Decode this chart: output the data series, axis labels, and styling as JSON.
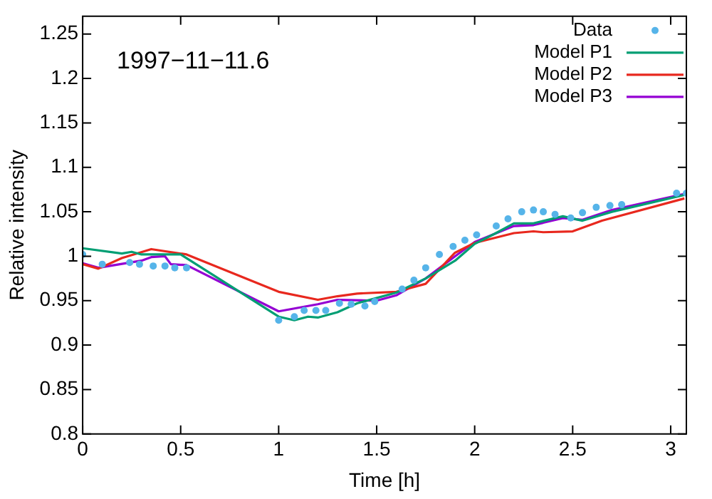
{
  "chart_data": {
    "type": "line",
    "xlabel": "Time [h]",
    "ylabel": "Relative intensity",
    "annotations": [
      "1997−11−11.6"
    ],
    "xlim": [
      0,
      3.08
    ],
    "xticks": [
      0,
      0.5,
      1,
      1.5,
      2,
      2.5,
      3
    ],
    "ylim": [
      0.8,
      1.27
    ],
    "yticks": [
      0.8,
      0.85,
      0.9,
      0.95,
      1,
      1.05,
      1.1,
      1.15,
      1.2,
      1.25
    ],
    "legend": "top right",
    "marker": "none",
    "line_style": "solid",
    "series": [
      {
        "name": "Data",
        "type": "scatter",
        "marker": "circle",
        "color": "#56b4e9",
        "x": [
          0,
          0.1,
          0.24,
          0.29,
          0.36,
          0.42,
          0.47,
          0.53,
          1.0,
          1.08,
          1.13,
          1.19,
          1.24,
          1.31,
          1.37,
          1.44,
          1.49,
          1.63,
          1.69,
          1.75,
          1.82,
          1.89,
          1.95,
          2.01,
          2.11,
          2.17,
          2.24,
          2.3,
          2.35,
          2.41,
          2.49,
          2.55,
          2.62,
          2.69,
          2.75,
          3.03,
          3.08
        ],
        "values": [
          1.002,
          0.991,
          0.993,
          0.991,
          0.989,
          0.989,
          0.987,
          0.987,
          0.928,
          0.932,
          0.939,
          0.939,
          0.939,
          0.947,
          0.946,
          0.944,
          0.949,
          0.963,
          0.973,
          0.987,
          1.002,
          1.011,
          1.018,
          1.024,
          1.034,
          1.042,
          1.05,
          1.052,
          1.05,
          1.047,
          1.043,
          1.049,
          1.055,
          1.057,
          1.058,
          1.071,
          1.071
        ]
      },
      {
        "name": "Model P1",
        "color": "#009e73",
        "x": [
          0,
          0.2,
          0.25,
          0.3,
          0.5,
          1.0,
          1.08,
          1.15,
          1.2,
          1.3,
          1.4,
          1.6,
          1.75,
          1.9,
          2.0,
          2.1,
          2.2,
          2.3,
          2.45,
          2.55,
          2.7,
          3.07
        ],
        "values": [
          1.009,
          1.003,
          1.005,
          1.002,
          1.002,
          0.932,
          0.928,
          0.932,
          0.931,
          0.937,
          0.947,
          0.959,
          0.975,
          0.995,
          1.014,
          1.025,
          1.037,
          1.037,
          1.045,
          1.04,
          1.05,
          1.069
        ]
      },
      {
        "name": "Model P2",
        "color": "#e8281e",
        "x": [
          0,
          0.08,
          0.2,
          0.35,
          0.53,
          1.0,
          1.2,
          1.3,
          1.4,
          1.6,
          1.75,
          1.9,
          2.0,
          2.2,
          2.3,
          2.35,
          2.5,
          2.65,
          3.07
        ],
        "values": [
          0.991,
          0.986,
          0.998,
          1.008,
          1.002,
          0.96,
          0.951,
          0.955,
          0.958,
          0.96,
          0.969,
          1.004,
          1.015,
          1.026,
          1.028,
          1.027,
          1.028,
          1.04,
          1.065
        ]
      },
      {
        "name": "Model P3",
        "color": "#9400d3",
        "x": [
          0,
          0.08,
          0.3,
          0.35,
          0.42,
          0.45,
          0.53,
          1.0,
          1.2,
          1.3,
          1.5,
          1.6,
          1.75,
          1.9,
          2.0,
          2.2,
          2.3,
          2.45,
          2.55,
          2.7,
          3.07
        ],
        "values": [
          0.992,
          0.987,
          0.995,
          0.999,
          1.0,
          0.991,
          0.99,
          0.938,
          0.946,
          0.951,
          0.95,
          0.956,
          0.975,
          1.0,
          1.016,
          1.034,
          1.035,
          1.043,
          1.041,
          1.052,
          1.07
        ]
      }
    ]
  }
}
